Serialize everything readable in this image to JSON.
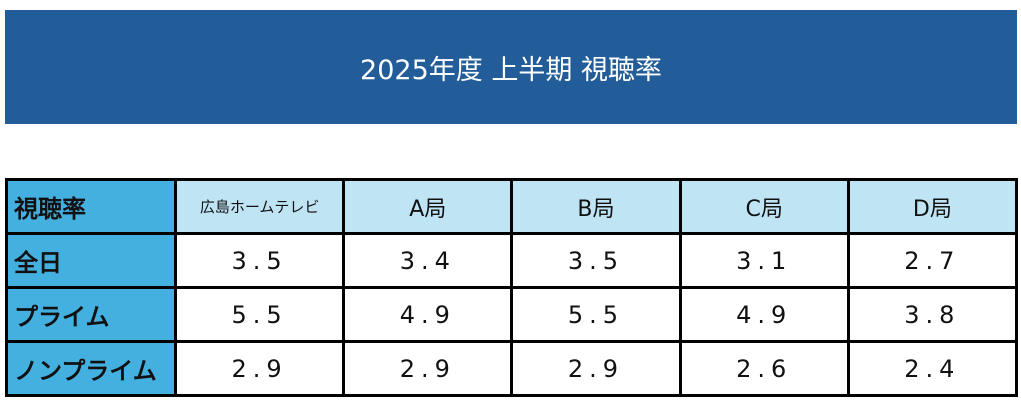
{
  "title": "2025年度 上半期 視聴率",
  "table": {
    "corner": "視聴率",
    "columns": [
      "広島ホームテレビ",
      "A局",
      "B局",
      "C局",
      "D局"
    ],
    "rows": [
      {
        "label": "全日",
        "values": [
          "3.5",
          "3.4",
          "3.5",
          "3.1",
          "2.7"
        ]
      },
      {
        "label": "プライム",
        "values": [
          "5.5",
          "4.9",
          "5.5",
          "4.9",
          "3.8"
        ]
      },
      {
        "label": "ノンプライム",
        "values": [
          "2.9",
          "2.9",
          "2.9",
          "2.6",
          "2.4"
        ]
      }
    ]
  },
  "colors": {
    "banner": "#225d99",
    "row_header": "#44b0e0",
    "col_header": "#bfe4f4"
  }
}
